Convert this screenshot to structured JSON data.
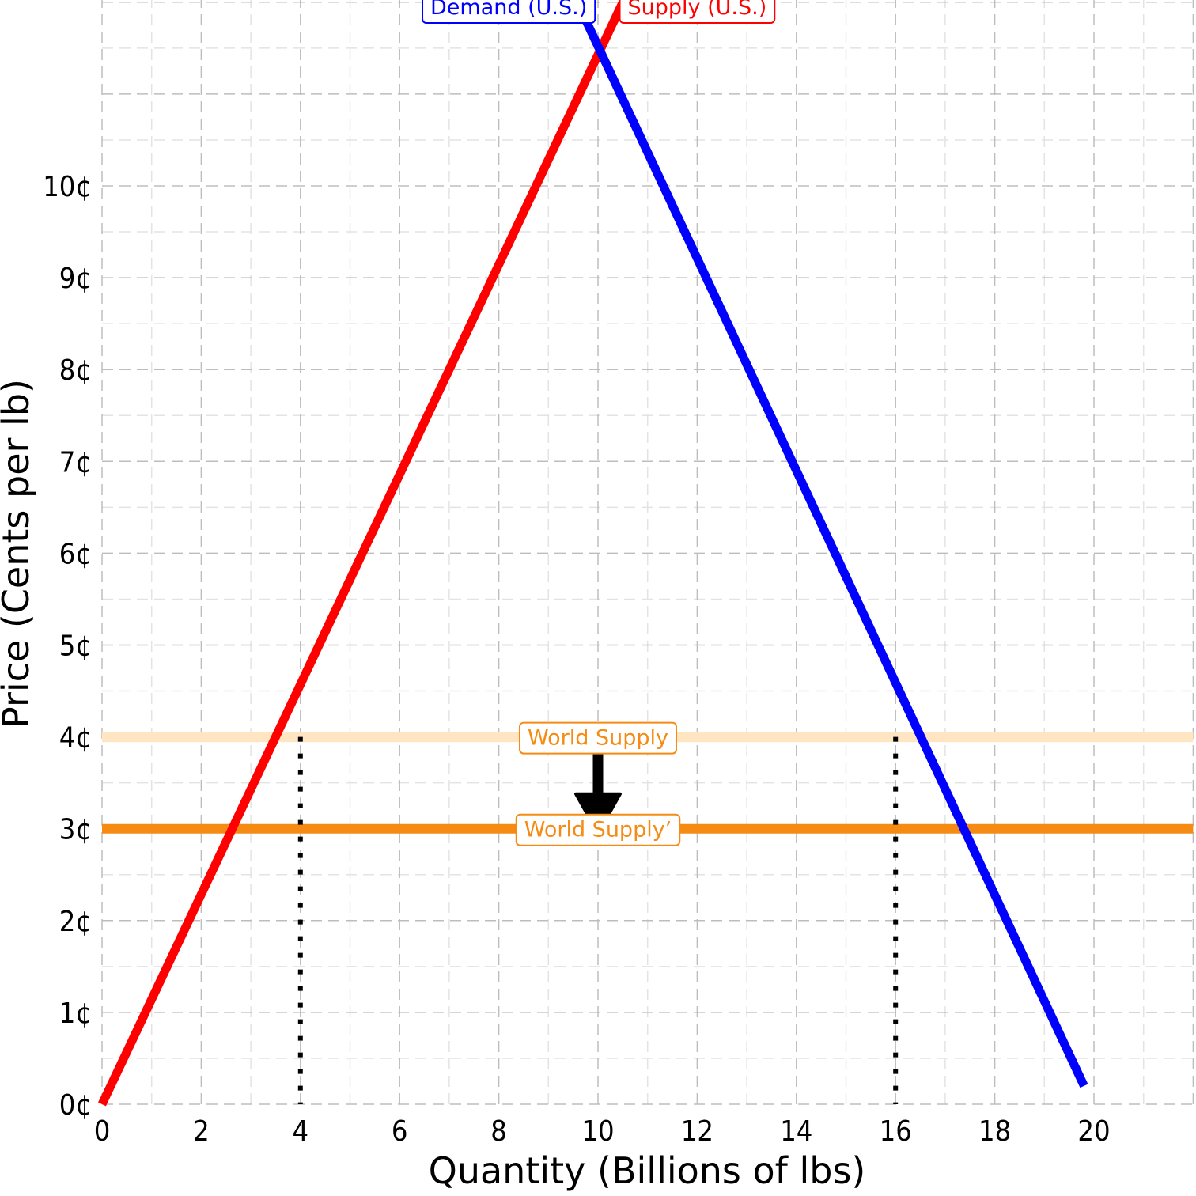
{
  "chart_data": {
    "type": "line",
    "xlabel": "Quantity (Billions of lbs)",
    "ylabel": "Price (Cents per lb)",
    "xlim": [
      0,
      22
    ],
    "ylim": [
      0,
      12
    ],
    "x_ticks": [
      0,
      2,
      4,
      6,
      8,
      10,
      12,
      14,
      16,
      18,
      20
    ],
    "y_ticks": [
      0,
      1,
      2,
      3,
      4,
      5,
      6,
      7,
      8,
      9,
      10
    ],
    "y_tick_labels": [
      "0¢",
      "1¢",
      "2¢",
      "3¢",
      "4¢",
      "5¢",
      "6¢",
      "7¢",
      "8¢",
      "9¢",
      "10¢"
    ],
    "grid": true,
    "series": [
      {
        "name": "Demand (U.S.)",
        "color": "#0000ff",
        "x": [
          8.2,
          19.8
        ],
        "y": [
          13.6,
          0.2
        ]
      },
      {
        "name": "Supply (U.S.)",
        "color": "#ff0000",
        "x": [
          0,
          11.9
        ],
        "y": [
          0,
          13.6
        ]
      },
      {
        "name": "World Supply",
        "color": "#ffe5c2",
        "x": [
          0,
          22
        ],
        "y": [
          4,
          4
        ]
      },
      {
        "name": "World Supply’",
        "color": "#f68b13",
        "x": [
          0,
          22
        ],
        "y": [
          3,
          3
        ]
      }
    ],
    "reference_lines": [
      {
        "x": 4,
        "y_top": 4,
        "style": "dotted"
      },
      {
        "x": 16,
        "y_top": 4,
        "style": "dotted"
      }
    ],
    "arrow": {
      "x": 10,
      "from_y": 4,
      "to_y": 3
    },
    "labels": [
      {
        "text": "Demand (U.S.)",
        "x": 8.2,
        "y": 12,
        "color": "#0000ff"
      },
      {
        "text": "Supply (U.S.)",
        "x": 12,
        "y": 12,
        "color": "#ff0000"
      },
      {
        "text": "World Supply",
        "x": 10,
        "y": 4,
        "color": "#f68b13"
      },
      {
        "text": "World Supply’",
        "x": 10,
        "y": 3,
        "color": "#f68b13"
      }
    ]
  }
}
